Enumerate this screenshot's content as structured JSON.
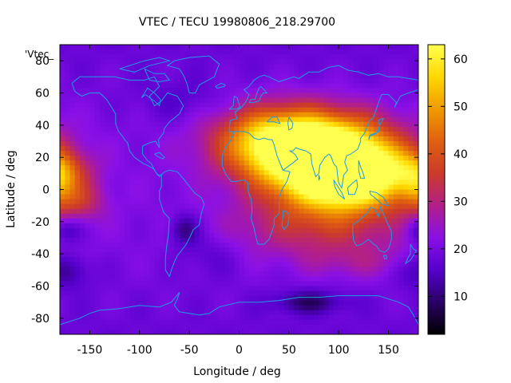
{
  "chart_data": {
    "type": "heatmap",
    "title": "VTEC / TECU 19980806_218.29700",
    "xlabel": "Longitude / deg",
    "ylabel": "Latitude / deg",
    "series_label": "'Vtec_",
    "xlim": [
      -180,
      180
    ],
    "ylim": [
      -90,
      90
    ],
    "xticks": [
      -150,
      -100,
      -50,
      0,
      50,
      100,
      150
    ],
    "yticks": [
      -80,
      -60,
      -40,
      -20,
      0,
      20,
      40,
      60,
      80
    ],
    "colorbar": {
      "range": [
        2,
        63
      ],
      "ticks": [
        10,
        20,
        30,
        40,
        50,
        60
      ],
      "palette": [
        "#000000",
        "#2a0066",
        "#5500cc",
        "#8a10e6",
        "#b21f8a",
        "#cc3a2a",
        "#e06010",
        "#f09a00",
        "#ffd800",
        "#ffff50"
      ]
    },
    "coastline_color": "#1e9be6",
    "grid": false,
    "features": [
      {
        "lon": 85,
        "lat": 15,
        "vtec": 62,
        "sx": 45,
        "sy": 18
      },
      {
        "lon": 65,
        "lat": 30,
        "vtec": 45,
        "sx": 55,
        "sy": 14
      },
      {
        "lon": 110,
        "lat": 5,
        "vtec": 42,
        "sx": 40,
        "sy": 15
      },
      {
        "lon": 30,
        "lat": 30,
        "vtec": 34,
        "sx": 35,
        "sy": 15
      },
      {
        "lon": 140,
        "lat": 10,
        "vtec": 32,
        "sx": 30,
        "sy": 12
      },
      {
        "lon": 75,
        "lat": -25,
        "vtec": 28,
        "sx": 60,
        "sy": 12
      },
      {
        "lon": -175,
        "lat": 10,
        "vtec": 30,
        "sx": 20,
        "sy": 10
      },
      {
        "lon": -160,
        "lat": -8,
        "vtec": 28,
        "sx": 18,
        "sy": 8
      },
      {
        "lon": 178,
        "lat": 5,
        "vtec": 28,
        "sx": 12,
        "sy": 12
      },
      {
        "lon": 120,
        "lat": -45,
        "vtec": 24,
        "sx": 45,
        "sy": 8
      },
      {
        "lon": -60,
        "lat": 55,
        "vtec": 14,
        "sx": 30,
        "sy": 10
      },
      {
        "lon": -175,
        "lat": -25,
        "vtec": 9,
        "sx": 12,
        "sy": 6
      },
      {
        "lon": -175,
        "lat": -50,
        "vtec": 9,
        "sx": 18,
        "sy": 8
      },
      {
        "lon": -55,
        "lat": -25,
        "vtec": 8,
        "sx": 10,
        "sy": 7
      },
      {
        "lon": 70,
        "lat": -70,
        "vtec": 8,
        "sx": 25,
        "sy": 5
      },
      {
        "lon": -30,
        "lat": -40,
        "vtec": 14,
        "sx": 20,
        "sy": 10
      }
    ],
    "background_vtec": 18
  }
}
